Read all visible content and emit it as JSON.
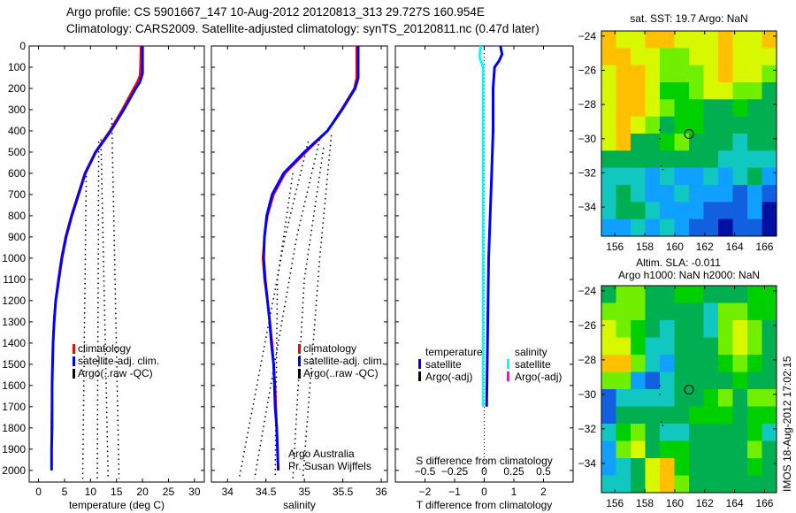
{
  "figure": {
    "title_line1": "Argo profile: CS 5901667_147 10-Aug-2012 20120813_313 29.727S 160.954E",
    "title_line2": "Climatology: CARS2009. Satellite-adjusted climatology: synTS_20120811.nc (0.47d later)",
    "credit_line1": "Argo Australia",
    "credit_line2": "Pr. Susan Wijffels",
    "stamp": "IMOS 18-Aug-2012 17:02:15"
  },
  "colors": {
    "climatology": "#ff0000",
    "satellite": "#0000ff",
    "argo": "#000000",
    "salinity_satellite": "#00ffff",
    "salinity_argo": "#ff00ff"
  },
  "chart_data": [
    {
      "id": "temperature",
      "type": "line",
      "xlabel": "temperature (deg C)",
      "xlim": [
        -1.8,
        31.9
      ],
      "xticks": [
        0,
        5,
        10,
        15,
        20,
        25,
        30
      ],
      "ylim": [
        0,
        2055
      ],
      "yticks": [
        0,
        100,
        200,
        300,
        400,
        500,
        600,
        700,
        800,
        900,
        1000,
        1100,
        1200,
        1300,
        1400,
        1500,
        1600,
        1700,
        1800,
        1900,
        2000
      ],
      "legend": [
        "climatology",
        "satellite-adj. clim.",
        "Argo(..raw -QC)"
      ],
      "series": [
        {
          "name": "climatology",
          "color": "#ff0000",
          "points": [
            [
              19.7,
              0
            ],
            [
              19.6,
              100
            ],
            [
              19.5,
              140
            ],
            [
              19.0,
              170
            ],
            [
              18.3,
              200
            ],
            [
              16.1,
              300
            ],
            [
              13.7,
              400
            ],
            [
              10.9,
              500
            ],
            [
              8.9,
              600
            ],
            [
              7.6,
              700
            ],
            [
              6.3,
              800
            ],
            [
              5.2,
              900
            ],
            [
              4.4,
              1000
            ],
            [
              3.8,
              1100
            ],
            [
              3.3,
              1200
            ],
            [
              3.0,
              1300
            ],
            [
              2.8,
              1400
            ],
            [
              2.7,
              1500
            ],
            [
              2.6,
              1600
            ],
            [
              2.55,
              1700
            ],
            [
              2.5,
              1800
            ],
            [
              2.5,
              1900
            ],
            [
              2.5,
              2000
            ]
          ]
        },
        {
          "name": "satellite-adj. clim.",
          "color": "#0000ff",
          "points": [
            [
              20.0,
              0
            ],
            [
              20.0,
              130
            ],
            [
              19.5,
              170
            ],
            [
              18.7,
              200
            ],
            [
              16.4,
              300
            ],
            [
              13.9,
              400
            ],
            [
              11.0,
              500
            ],
            [
              9.0,
              600
            ],
            [
              7.7,
              700
            ],
            [
              6.4,
              800
            ],
            [
              5.3,
              900
            ],
            [
              4.5,
              1000
            ],
            [
              3.9,
              1100
            ],
            [
              3.3,
              1200
            ],
            [
              3.0,
              1300
            ],
            [
              2.8,
              1400
            ],
            [
              2.7,
              1500
            ],
            [
              2.6,
              1600
            ],
            [
              2.6,
              1700
            ],
            [
              2.6,
              1800
            ],
            [
              2.5,
              1900
            ],
            [
              2.5,
              2000
            ]
          ]
        }
      ],
      "argo_raw_lines": [
        [
          [
            14.1,
            340
          ],
          [
            15.5,
            2040
          ]
        ],
        [
          [
            12.0,
            440
          ],
          [
            13.4,
            2040
          ]
        ],
        [
          [
            11.6,
            450
          ],
          [
            11.3,
            2040
          ]
        ],
        [
          [
            9.2,
            590
          ],
          [
            8.5,
            2040
          ]
        ]
      ]
    },
    {
      "id": "salinity",
      "type": "line",
      "xlabel": "salinity",
      "xlim": [
        33.79,
        36.08
      ],
      "xticks": [
        34,
        34.5,
        35,
        35.5,
        36
      ],
      "ylim": [
        0,
        2055
      ],
      "yticks": [
        0,
        100,
        200,
        300,
        400,
        500,
        600,
        700,
        800,
        900,
        1000,
        1100,
        1200,
        1300,
        1400,
        1500,
        1600,
        1700,
        1800,
        1900,
        2000
      ],
      "legend": [
        "climatology",
        "satellite-adj. clim.",
        "Argo(..raw -QC)"
      ],
      "series": [
        {
          "name": "climatology",
          "color": "#ff0000",
          "points": [
            [
              35.68,
              0
            ],
            [
              35.68,
              150
            ],
            [
              35.65,
              200
            ],
            [
              35.48,
              300
            ],
            [
              35.3,
              400
            ],
            [
              35.02,
              500
            ],
            [
              34.75,
              600
            ],
            [
              34.6,
              700
            ],
            [
              34.52,
              800
            ],
            [
              34.48,
              900
            ],
            [
              34.46,
              1000
            ],
            [
              34.48,
              1100
            ],
            [
              34.52,
              1200
            ],
            [
              34.55,
              1300
            ],
            [
              34.58,
              1400
            ],
            [
              34.6,
              1500
            ],
            [
              34.62,
              1600
            ],
            [
              34.63,
              1700
            ],
            [
              34.64,
              1800
            ],
            [
              34.65,
              1900
            ],
            [
              34.66,
              2000
            ]
          ]
        },
        {
          "name": "satellite-adj. clim.",
          "color": "#0000ff",
          "points": [
            [
              35.7,
              0
            ],
            [
              35.7,
              150
            ],
            [
              35.66,
              200
            ],
            [
              35.49,
              300
            ],
            [
              35.3,
              400
            ],
            [
              35.0,
              500
            ],
            [
              34.73,
              600
            ],
            [
              34.58,
              700
            ],
            [
              34.51,
              800
            ],
            [
              34.48,
              900
            ],
            [
              34.47,
              1000
            ],
            [
              34.49,
              1100
            ],
            [
              34.52,
              1200
            ],
            [
              34.55,
              1300
            ],
            [
              34.57,
              1400
            ],
            [
              34.6,
              1500
            ],
            [
              34.61,
              1600
            ],
            [
              34.62,
              1700
            ],
            [
              34.64,
              1800
            ],
            [
              34.65,
              1900
            ],
            [
              34.66,
              2000
            ]
          ]
        }
      ],
      "argo_raw_lines": [
        [
          [
            35.05,
            450
          ],
          [
            34.75,
            900
          ],
          [
            34.15,
            2040
          ]
        ],
        [
          [
            35.2,
            440
          ],
          [
            34.9,
            900
          ],
          [
            34.35,
            2040
          ]
        ],
        [
          [
            34.85,
            600
          ],
          [
            34.65,
            1100
          ],
          [
            34.62,
            2040
          ]
        ],
        [
          [
            35.25,
            480
          ],
          [
            35.0,
            1100
          ],
          [
            34.85,
            2040
          ]
        ],
        [
          [
            35.35,
            420
          ],
          [
            35.2,
            1000
          ],
          [
            34.98,
            2040
          ]
        ]
      ]
    },
    {
      "id": "difference",
      "type": "line",
      "xlabel": "T difference from climatology",
      "xlim": [
        -3,
        3
      ],
      "xticks": [
        -2,
        -1,
        0,
        1,
        2
      ],
      "x2label": "S difference from climatology",
      "x2lim": [
        -0.75,
        0.75
      ],
      "x2ticks": [
        -0.5,
        -0.25,
        0,
        0.25,
        0.5
      ],
      "ylim": [
        0,
        2055
      ],
      "legend_temperature_header": "temperature",
      "legend_salinity_header": "salinity",
      "legend_temperature": [
        "satellite",
        "Argo(-adj)"
      ],
      "legend_salinity": [
        "satellite",
        "Argo(-adj)"
      ],
      "series": [
        {
          "name": "T satellite",
          "axis": "T",
          "color": "#0000ff",
          "points": [
            [
              0.55,
              0
            ],
            [
              0.6,
              40
            ],
            [
              0.5,
              70
            ],
            [
              0.35,
              100
            ],
            [
              0.3,
              200
            ],
            [
              0.3,
              400
            ],
            [
              0.25,
              600
            ],
            [
              0.2,
              800
            ],
            [
              0.15,
              1000
            ],
            [
              0.12,
              1300
            ],
            [
              0.1,
              1500
            ],
            [
              0.08,
              1700
            ]
          ]
        },
        {
          "name": "S satellite",
          "axis": "S",
          "color": "#00ffff",
          "points": [
            [
              -0.03,
              0
            ],
            [
              -0.04,
              50
            ],
            [
              -0.01,
              100
            ],
            [
              -0.01,
              500
            ],
            [
              -0.01,
              1000
            ],
            [
              -0.01,
              1500
            ],
            [
              -0.01,
              1700
            ]
          ]
        }
      ]
    },
    {
      "id": "sst_map",
      "type": "heatmap",
      "title": "sat. SST: 19.7 Argo: NaN",
      "lon_range": [
        155.1,
        166.8
      ],
      "lat_range": [
        -23.7,
        -35.7
      ],
      "xticks": [
        156,
        158,
        160,
        162,
        164,
        166
      ],
      "yticks": [
        -24,
        -26,
        -28,
        -30,
        -32,
        -34
      ],
      "palette": [
        "#0010a0",
        "#1060e0",
        "#10a0ff",
        "#10c8c0",
        "#00b050",
        "#00d000",
        "#70f000",
        "#d8f800",
        "#ffc000",
        "#f09000"
      ],
      "grid_levels": [
        [
          8,
          7,
          7,
          8,
          8,
          7,
          7,
          7,
          8,
          7,
          7,
          8
        ],
        [
          8,
          8,
          7,
          7,
          6,
          6,
          7,
          7,
          8,
          7,
          7,
          7
        ],
        [
          7,
          8,
          8,
          7,
          6,
          6,
          6,
          7,
          8,
          7,
          7,
          6
        ],
        [
          7,
          8,
          8,
          7,
          5,
          5,
          6,
          7,
          7,
          6,
          6,
          4
        ],
        [
          7,
          8,
          8,
          7,
          6,
          5,
          5,
          4,
          4,
          5,
          4,
          4
        ],
        [
          7,
          8,
          7,
          6,
          4,
          5,
          5,
          4,
          4,
          4,
          4,
          4
        ],
        [
          7,
          8,
          4,
          4,
          5,
          6,
          4,
          4,
          4,
          3,
          4,
          4
        ],
        [
          4,
          4,
          4,
          4,
          4,
          4,
          4,
          4,
          3,
          3,
          3,
          3
        ],
        [
          3,
          3,
          3,
          2,
          3,
          2,
          2,
          3,
          2,
          3,
          4,
          2
        ],
        [
          3,
          4,
          3,
          2,
          2,
          3,
          2,
          2,
          2,
          1,
          2,
          1
        ],
        [
          3,
          4,
          4,
          3,
          2,
          2,
          2,
          1,
          1,
          1,
          2,
          0
        ],
        [
          2,
          2,
          3,
          2,
          3,
          2,
          1,
          1,
          0,
          1,
          1,
          0
        ]
      ],
      "profile_location": [
        160.954,
        -29.727
      ],
      "track_marks": [
        [
          159.0,
          -29.5
        ],
        [
          159.0,
          -30.0
        ],
        [
          159.1,
          -31.6
        ],
        [
          159.2,
          -31.8
        ]
      ]
    },
    {
      "id": "sla_map",
      "type": "heatmap",
      "title_line1": "Altim. SLA: -0.011",
      "title_line2": "Argo h1000: NaN h2000: NaN",
      "lon_range": [
        155.1,
        166.8
      ],
      "lat_range": [
        -23.7,
        -35.7
      ],
      "xticks": [
        156,
        158,
        160,
        162,
        164,
        166
      ],
      "yticks": [
        -24,
        -26,
        -28,
        -30,
        -32,
        -34
      ],
      "palette": [
        "#0010a0",
        "#1060e0",
        "#10a0ff",
        "#10c8c0",
        "#00b050",
        "#00d000",
        "#70f000",
        "#d8f800",
        "#ffc000",
        "#f09000"
      ],
      "grid_levels": [
        [
          4,
          6,
          6,
          4,
          4,
          5,
          5,
          4,
          4,
          4,
          5,
          5
        ],
        [
          6,
          6,
          6,
          4,
          4,
          4,
          4,
          3,
          6,
          6,
          5,
          5
        ],
        [
          7,
          6,
          5,
          4,
          3,
          4,
          4,
          3,
          6,
          7,
          6,
          4
        ],
        [
          7,
          7,
          5,
          3,
          3,
          4,
          4,
          4,
          6,
          7,
          6,
          4
        ],
        [
          8,
          8,
          6,
          3,
          2,
          4,
          4,
          4,
          5,
          6,
          5,
          4
        ],
        [
          6,
          6,
          2,
          1,
          3,
          4,
          4,
          4,
          4,
          5,
          4,
          4
        ],
        [
          1,
          3,
          3,
          3,
          3,
          4,
          4,
          5,
          6,
          4,
          6,
          6
        ],
        [
          1,
          4,
          4,
          4,
          4,
          4,
          5,
          5,
          5,
          4,
          5,
          5
        ],
        [
          3,
          5,
          6,
          4,
          3,
          3,
          4,
          4,
          4,
          4,
          5,
          3
        ],
        [
          2,
          6,
          7,
          4,
          5,
          5,
          4,
          4,
          4,
          4,
          6,
          4
        ],
        [
          2,
          3,
          4,
          7,
          8,
          5,
          4,
          4,
          4,
          4,
          5,
          4
        ],
        [
          3,
          3,
          4,
          7,
          8,
          6,
          4,
          4,
          4,
          4,
          4,
          4
        ]
      ],
      "profile_location": [
        160.954,
        -29.727
      ],
      "track_marks": [
        [
          159.0,
          -29.5
        ],
        [
          159.0,
          -30.0
        ],
        [
          159.1,
          -31.6
        ],
        [
          159.2,
          -31.8
        ]
      ]
    }
  ]
}
